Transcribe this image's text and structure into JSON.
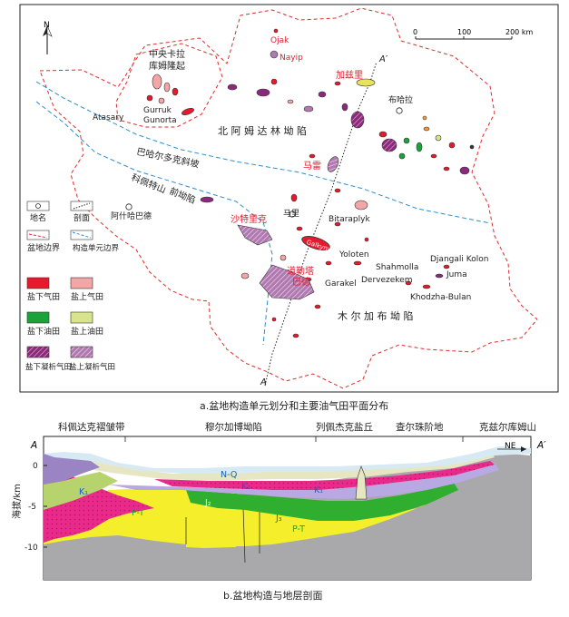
{
  "map": {
    "north_label": "N",
    "scale": {
      "ticks": [
        "0",
        "100",
        "200 km"
      ]
    },
    "labels": {
      "central_karakum": [
        "中央卡拉",
        "库姆隆起"
      ],
      "north_amu": "北 阿 姆 达 林 坳 陷",
      "murgab": "木 尔 加 布 坳 陷",
      "bakhardok": "巴哈尔多克斜坡",
      "kopet_front": [
        "科佩特山",
        "前坳陷"
      ],
      "ashgabat": "阿什哈巴德",
      "mary": "马里",
      "bukhara": "布哈拉",
      "atasary": "Atasary",
      "gurruk": [
        "Gurruk",
        "Gunorta"
      ],
      "bitaraplyk": "Bitaraplyk",
      "yoloten": "Yoloten",
      "garakel": "Garakel",
      "dervezekem": "Dervezekem",
      "shahmolla": "Shahmolla",
      "djangali": "Djangali Kolon",
      "juma": "Juma",
      "khodzha": "Khodzha-Bulan",
      "ojak": "Ojak",
      "nayip": "Nayip",
      "gazli": "加兹里",
      "malay": "马雷",
      "sahatlyk": "沙特里克",
      "dauletabad": [
        "道勒塔",
        "巴德"
      ],
      "galkynysh": "Galkyny",
      "section_a": "A",
      "section_a2": "A′"
    },
    "legend": [
      {
        "label": "地名",
        "kind": "circle"
      },
      {
        "label": "剖面",
        "kind": "section"
      },
      {
        "label": "盆地边界",
        "kind": "red-dash"
      },
      {
        "label": "构造单元边界",
        "kind": "blue-dash"
      },
      {
        "label": "盐下气田",
        "kind": "fill",
        "color": "#e8192c"
      },
      {
        "label": "盐上气田",
        "kind": "fill",
        "color": "#f4a6a6"
      },
      {
        "label": "盐下油田",
        "kind": "fill",
        "color": "#1aa33a"
      },
      {
        "label": "盐上油田",
        "kind": "fill",
        "color": "#d8e48c"
      },
      {
        "label": "盐下凝析气田",
        "kind": "hatch",
        "color": "#8a2a7a"
      },
      {
        "label": "盐上凝析气田",
        "kind": "hatch",
        "color": "#b07ab0"
      }
    ],
    "caption": "a.盆地构造单元划分和主要油气田平面分布"
  },
  "section": {
    "tops": [
      "科佩达克褶皱带",
      "穆尔加博坳陷",
      "列佩杰克盐丘",
      "查尔珠阶地",
      "克兹尔库姆山"
    ],
    "end_a": "A",
    "end_a2": "A′",
    "ne": "NE",
    "y_title": "海拔/km",
    "y_ticks": [
      "0",
      "-5",
      "-10"
    ],
    "strata": {
      "k1": "K₁",
      "k2": "K₂",
      "nq": "N-Q",
      "j2": "J₂",
      "j3": "J₃",
      "pt1": "P-T",
      "pt2": "P-T"
    },
    "caption": "b.盆地构造与地层剖面"
  }
}
